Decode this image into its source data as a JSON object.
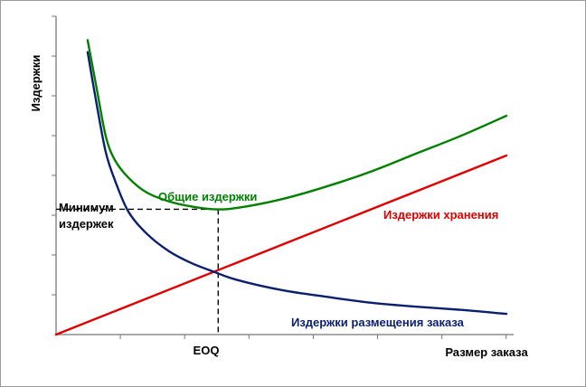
{
  "chart_data": {
    "type": "line",
    "title": "",
    "xlabel": "Размер заказа",
    "ylabel": "Издержки",
    "x_tick_labels": [
      {
        "x": 3.6,
        "label": "EOQ"
      }
    ],
    "xlim": [
      0,
      10
    ],
    "ylim": [
      0,
      8
    ],
    "grid": false,
    "legend": "none",
    "series": [
      {
        "name": "Общие издержки",
        "color": "#008000",
        "x": [
          0.7,
          0.9,
          1.1,
          1.3,
          1.6,
          2.0,
          2.5,
          3.0,
          3.5,
          4.0,
          5.0,
          6.0,
          7.0,
          8.0,
          9.0,
          10.0
        ],
        "y": [
          7.4,
          6.2,
          5.0,
          4.4,
          3.95,
          3.58,
          3.35,
          3.22,
          3.15,
          3.18,
          3.4,
          3.72,
          4.1,
          4.55,
          5.0,
          5.5
        ]
      },
      {
        "name": "Издержки хранения",
        "color": "#e00000",
        "x": [
          0,
          10
        ],
        "y": [
          0,
          4.5
        ]
      },
      {
        "name": "Издержки размещения заказа",
        "color": "#0a1f6e",
        "x": [
          0.7,
          0.9,
          1.1,
          1.3,
          1.6,
          2.0,
          2.5,
          3.0,
          3.5,
          4.0,
          5.0,
          6.0,
          7.0,
          8.0,
          9.0,
          10.0
        ],
        "y": [
          7.1,
          5.8,
          4.6,
          3.9,
          3.1,
          2.55,
          2.1,
          1.8,
          1.58,
          1.38,
          1.12,
          0.95,
          0.8,
          0.7,
          0.62,
          0.52
        ]
      }
    ],
    "annotations": {
      "total_label": "Общие издержки",
      "holding_label": "Издержки хранения",
      "ordering_label": "Издержки размещения заказа",
      "minimum_label_line1": "Минимум",
      "minimum_label_line2": "издержек"
    },
    "minimum_point": {
      "x": 3.6,
      "y": 3.15
    }
  }
}
